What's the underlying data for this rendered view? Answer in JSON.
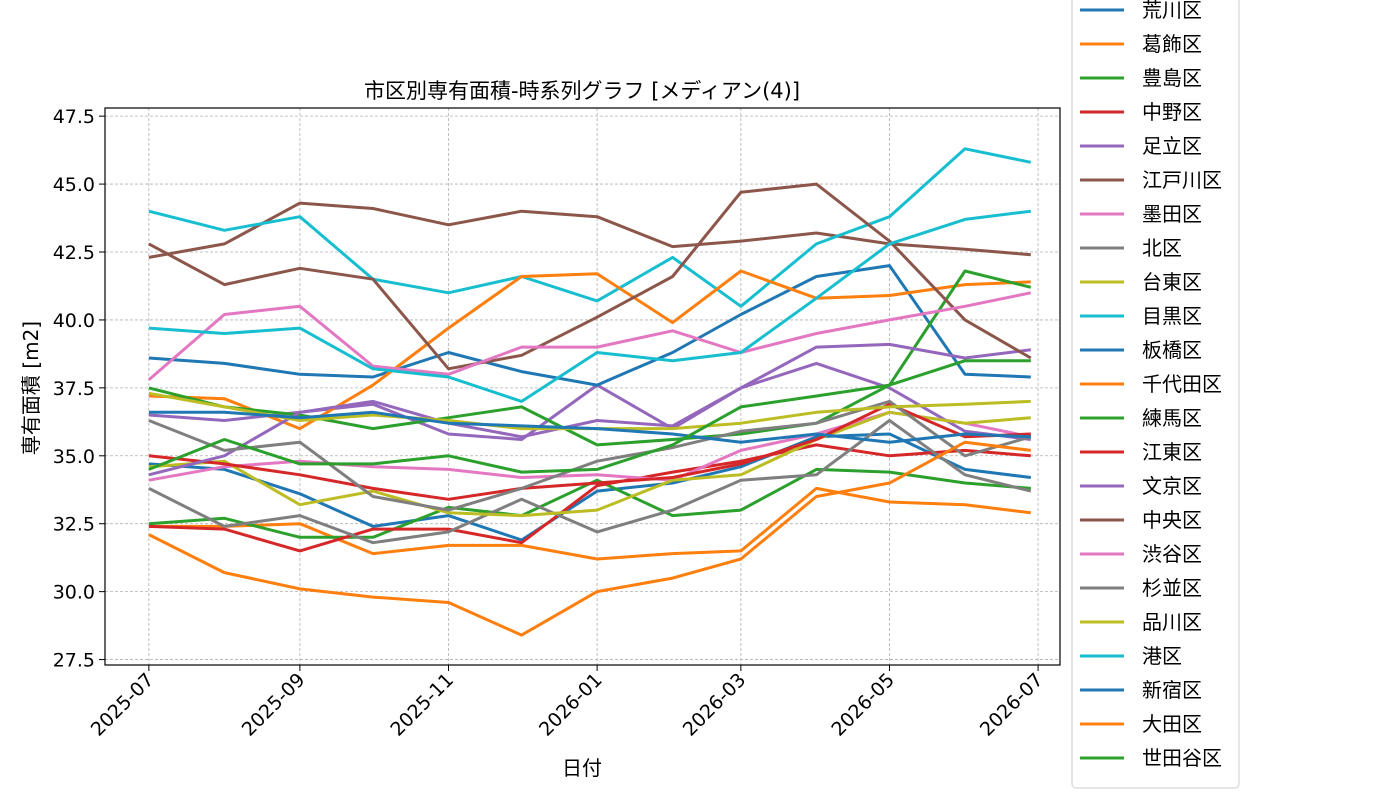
{
  "chart_data": {
    "type": "line",
    "title": "市区別専有面積-時系列グラフ [メディアン(4)]",
    "xlabel": "日付",
    "ylabel": "専有面積 [m2]",
    "xlim": [
      "2025-06-13",
      "2026-07-10"
    ],
    "ylim": [
      27.3,
      47.8
    ],
    "xticks": [
      "2025-07-01",
      "2025-09-01",
      "2025-11-01",
      "2026-01-01",
      "2026-03-01",
      "2026-05-01",
      "2026-07-01"
    ],
    "xtick_labels": [
      "2025-07",
      "2025-09",
      "2025-11",
      "2026-01",
      "2026-03",
      "2026-05",
      "2026-07"
    ],
    "yticks": [
      27.5,
      30.0,
      32.5,
      35.0,
      37.5,
      40.0,
      42.5,
      45.0,
      47.5
    ],
    "ytick_labels": [
      "27.5",
      "30.0",
      "32.5",
      "35.0",
      "37.5",
      "40.0",
      "42.5",
      "45.0",
      "47.5"
    ],
    "grid": true,
    "legend_position": "right",
    "x": [
      "2025-07-01",
      "2025-08-01",
      "2025-09-01",
      "2025-10-01",
      "2025-11-01",
      "2025-12-01",
      "2026-01-01",
      "2026-02-01",
      "2026-03-01",
      "2026-04-01",
      "2026-05-01",
      "2026-06-01",
      "2026-06-28"
    ],
    "series": [
      {
        "name": "荒川区",
        "color": "#1f77b4",
        "values": [
          34.7,
          34.5,
          33.6,
          32.4,
          32.8,
          31.9,
          33.7,
          34.0,
          34.6,
          35.7,
          35.8,
          34.5,
          34.2
        ]
      },
      {
        "name": "葛飾区",
        "color": "#ff7f0e",
        "values": [
          32.4,
          32.4,
          32.5,
          31.4,
          31.7,
          31.7,
          31.2,
          31.4,
          31.5,
          33.8,
          33.3,
          33.2,
          32.9
        ]
      },
      {
        "name": "豊島区",
        "color": "#2ca02c",
        "values": [
          32.5,
          32.7,
          32.0,
          32.0,
          33.1,
          32.8,
          34.1,
          32.8,
          33.0,
          34.5,
          34.4,
          34.0,
          33.8
        ]
      },
      {
        "name": "中野区",
        "color": "#d62728",
        "values": [
          32.4,
          32.3,
          31.5,
          32.3,
          32.3,
          31.8,
          33.9,
          34.4,
          34.8,
          35.4,
          35.0,
          35.2,
          35.0
        ]
      },
      {
        "name": "足立区",
        "color": "#9467bd",
        "values": [
          36.5,
          36.3,
          36.6,
          36.9,
          35.8,
          35.6,
          37.6,
          36.0,
          37.5,
          38.4,
          37.5,
          35.9,
          35.6
        ]
      },
      {
        "name": "江戸川区",
        "color": "#8c564b",
        "values": [
          42.3,
          42.8,
          44.3,
          44.1,
          43.5,
          44.0,
          43.8,
          42.7,
          42.9,
          43.2,
          42.8,
          42.6,
          42.4
        ]
      },
      {
        "name": "墨田区",
        "color": "#e377c2",
        "values": [
          34.1,
          34.6,
          34.8,
          34.6,
          34.5,
          34.2,
          34.3,
          34.1,
          35.2,
          35.8,
          36.6,
          36.2,
          35.7
        ]
      },
      {
        "name": "北区",
        "color": "#7f7f7f",
        "values": [
          33.8,
          32.4,
          32.8,
          31.8,
          32.2,
          33.4,
          32.2,
          33.0,
          34.1,
          34.3,
          36.3,
          34.3,
          33.7
        ]
      },
      {
        "name": "台東区",
        "color": "#bcbd22",
        "values": [
          34.6,
          34.8,
          33.2,
          33.7,
          32.9,
          32.8,
          33.0,
          34.1,
          34.3,
          35.6,
          36.6,
          36.2,
          36.4
        ]
      },
      {
        "name": "目黒区",
        "color": "#17becf",
        "values": [
          44.0,
          43.3,
          43.8,
          41.5,
          41.0,
          41.6,
          40.7,
          42.3,
          40.5,
          42.8,
          43.8,
          46.3,
          45.8
        ]
      },
      {
        "name": "板橋区",
        "color": "#1f77b4",
        "values": [
          38.6,
          38.4,
          38.0,
          37.9,
          38.8,
          38.1,
          37.6,
          38.8,
          40.2,
          41.6,
          42.0,
          38.0,
          37.9
        ]
      },
      {
        "name": "千代田区",
        "color": "#ff7f0e",
        "values": [
          37.2,
          37.1,
          36.0,
          37.6,
          39.7,
          41.6,
          41.7,
          39.9,
          41.8,
          40.8,
          40.9,
          41.3,
          41.4
        ]
      },
      {
        "name": "練馬区",
        "color": "#2ca02c",
        "values": [
          37.5,
          36.8,
          36.5,
          36.0,
          36.4,
          36.8,
          35.4,
          35.6,
          35.8,
          36.2,
          37.6,
          41.8,
          41.2
        ]
      },
      {
        "name": "江東区",
        "color": "#d62728",
        "values": [
          35.0,
          34.7,
          34.3,
          33.8,
          33.4,
          33.8,
          34.0,
          34.2,
          34.7,
          35.6,
          36.9,
          35.7,
          35.8
        ]
      },
      {
        "name": "文京区",
        "color": "#9467bd",
        "values": [
          34.3,
          35.0,
          36.6,
          37.0,
          36.2,
          35.7,
          36.3,
          36.1,
          37.5,
          39.0,
          39.1,
          38.6,
          38.9
        ]
      },
      {
        "name": "中央区",
        "color": "#8c564b",
        "values": [
          42.8,
          41.3,
          41.9,
          41.5,
          38.2,
          38.7,
          40.1,
          41.6,
          44.7,
          45.0,
          42.9,
          40.0,
          38.6
        ]
      },
      {
        "name": "渋谷区",
        "color": "#e377c2",
        "values": [
          37.8,
          40.2,
          40.5,
          38.3,
          38.0,
          39.0,
          39.0,
          39.6,
          38.8,
          39.5,
          40.0,
          40.5,
          41.0
        ]
      },
      {
        "name": "杉並区",
        "color": "#7f7f7f",
        "values": [
          36.3,
          35.2,
          35.5,
          33.5,
          33.0,
          33.8,
          34.8,
          35.3,
          35.9,
          36.2,
          37.0,
          35.0,
          35.7
        ]
      },
      {
        "name": "品川区",
        "color": "#bcbd22",
        "values": [
          37.3,
          36.8,
          36.3,
          36.5,
          36.3,
          36.0,
          36.0,
          36.0,
          36.2,
          36.6,
          36.8,
          36.9,
          37.0
        ]
      },
      {
        "name": "港区",
        "color": "#17becf",
        "values": [
          39.7,
          39.5,
          39.7,
          38.2,
          37.9,
          37.0,
          38.8,
          38.5,
          38.8,
          40.8,
          42.8,
          43.7,
          44.0
        ]
      },
      {
        "name": "新宿区",
        "color": "#1f77b4",
        "values": [
          36.6,
          36.6,
          36.4,
          36.6,
          36.2,
          36.1,
          36.0,
          35.8,
          35.5,
          35.8,
          35.5,
          35.8,
          35.7
        ]
      },
      {
        "name": "大田区",
        "color": "#ff7f0e",
        "values": [
          32.1,
          30.7,
          30.1,
          29.8,
          29.6,
          28.4,
          30.0,
          30.5,
          31.2,
          33.5,
          34.0,
          35.5,
          35.2
        ]
      },
      {
        "name": "世田谷区",
        "color": "#2ca02c",
        "values": [
          34.5,
          35.6,
          34.7,
          34.7,
          35.0,
          34.4,
          34.5,
          35.4,
          36.8,
          37.2,
          37.6,
          38.5,
          38.5
        ]
      }
    ]
  }
}
